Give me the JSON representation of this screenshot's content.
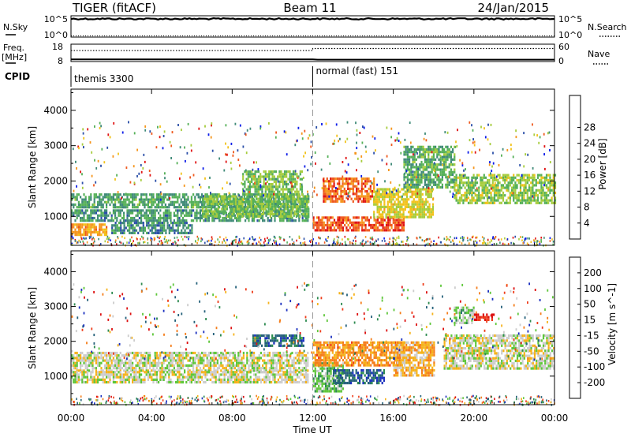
{
  "header": {
    "radar": "TIGER (fitACF)",
    "beam": "Beam 11",
    "date": "24/Jan/2015"
  },
  "noise_panel": {
    "left_label": "N.Sky",
    "right_label": "N.Search",
    "left_ticks": [
      "10^5",
      "10^0"
    ],
    "right_ticks": [
      "10^5",
      "10^0"
    ]
  },
  "freq_panel": {
    "left_label_line1": "Freq.",
    "left_label_line2": "[MHz]",
    "right_label": "Nave",
    "left_ticks": [
      "18",
      "8"
    ],
    "right_ticks": [
      "60",
      "0"
    ],
    "freq_mhz": 9.1,
    "nave_before": 38,
    "nave_after": 45
  },
  "cpid_panel": {
    "label": "CPID",
    "modes": [
      {
        "name": "themis 3300",
        "start_hour": 0
      },
      {
        "name": "normal (fast) 151",
        "start_hour": 12
      }
    ]
  },
  "x_axis": {
    "label": "Time UT",
    "range_hours": [
      0,
      24
    ],
    "tick_labels": [
      "00:00",
      "04:00",
      "08:00",
      "12:00",
      "16:00",
      "20:00",
      "00:00"
    ]
  },
  "chart_data": [
    {
      "type": "heatmap",
      "parameter": "power",
      "ylabel": "Slant Range [km]",
      "ylim": [
        180,
        4600
      ],
      "y_ticks": [
        1000,
        2000,
        3000,
        4000
      ],
      "colorbar_label": "Power [dB]",
      "colorbar_ticks": [
        "4",
        "8",
        "12",
        "16",
        "20",
        "24",
        "28"
      ],
      "colorbar_range": [
        0,
        32
      ],
      "colors": [
        "#0b1be8",
        "#2b4fa8",
        "#3f8a78",
        "#55b058",
        "#a6cc3c",
        "#f2c21a",
        "#f5951c",
        "#ef5a1e",
        "#e01414"
      ],
      "regions": [
        {
          "x": [
            0,
            11.8
          ],
          "y": [
            1250,
            1650
          ],
          "value": 11
        },
        {
          "x": [
            0,
            11.8
          ],
          "y": [
            900,
            1200
          ],
          "value": 10
        },
        {
          "x": [
            0,
            1.8
          ],
          "y": [
            450,
            800
          ],
          "value": 22
        },
        {
          "x": [
            2,
            6
          ],
          "y": [
            550,
            850
          ],
          "value": 9
        },
        {
          "x": [
            6.5,
            11.8
          ],
          "y": [
            1000,
            1600
          ],
          "value": 14
        },
        {
          "x": [
            8.5,
            11.5
          ],
          "y": [
            1600,
            2300
          ],
          "value": 14
        },
        {
          "x": [
            12,
            16.5
          ],
          "y": [
            600,
            1000
          ],
          "value": 27
        },
        {
          "x": [
            12.5,
            15
          ],
          "y": [
            1400,
            2100
          ],
          "value": 26
        },
        {
          "x": [
            15,
            18
          ],
          "y": [
            1000,
            1800
          ],
          "value": 18
        },
        {
          "x": [
            16.5,
            19
          ],
          "y": [
            1800,
            3000
          ],
          "value": 12
        },
        {
          "x": [
            19,
            24
          ],
          "y": [
            1400,
            2200
          ],
          "value": 15
        }
      ],
      "mode_change_hour": 12
    },
    {
      "type": "heatmap",
      "parameter": "velocity",
      "ylabel": "Slant Range [km]",
      "ylim": [
        180,
        4600
      ],
      "y_ticks": [
        1000,
        2000,
        3000,
        4000
      ],
      "colorbar_label": "Velocity [m s^-1]",
      "colorbar_ticks": [
        "200",
        "100",
        "50",
        "15",
        "-15",
        "-50",
        "-100",
        "-200"
      ],
      "colorbar_range": [
        -250,
        250
      ],
      "colors": [
        "#1a2fbf",
        "#24607a",
        "#2c8a4f",
        "#5ec63a",
        "#cccccc",
        "#f6b21a",
        "#f57d1a",
        "#ee3c1a",
        "#dd1010"
      ],
      "regions": [
        {
          "x": [
            0,
            11.8
          ],
          "y": [
            1150,
            1700
          ],
          "value": 0
        },
        {
          "x": [
            0,
            11.8
          ],
          "y": [
            800,
            1150
          ],
          "value": 0
        },
        {
          "x": [
            9,
            11.5
          ],
          "y": [
            1900,
            2200
          ],
          "value": 160
        },
        {
          "x": [
            12,
            13.5
          ],
          "y": [
            600,
            1400
          ],
          "value": 60
        },
        {
          "x": [
            13,
            15.5
          ],
          "y": [
            800,
            1200
          ],
          "value": 170
        },
        {
          "x": [
            12,
            16.5
          ],
          "y": [
            1300,
            2000
          ],
          "value": -90
        },
        {
          "x": [
            16,
            18
          ],
          "y": [
            1000,
            2000
          ],
          "value": -60
        },
        {
          "x": [
            18.5,
            24
          ],
          "y": [
            1200,
            2200
          ],
          "value": 0
        },
        {
          "x": [
            19,
            20
          ],
          "y": [
            2500,
            3000
          ],
          "value": 40
        },
        {
          "x": [
            20,
            21
          ],
          "y": [
            2600,
            2800
          ],
          "value": -200
        }
      ],
      "mode_change_hour": 12
    }
  ]
}
